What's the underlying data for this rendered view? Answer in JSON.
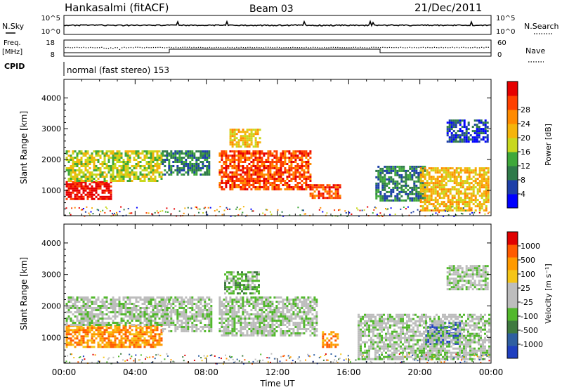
{
  "header": {
    "station": "Hankasalmi (fitACF)",
    "beam": "Beam 03",
    "date": "21/Dec/2011"
  },
  "noise": {
    "left_label": "N.Sky",
    "right_label": "N.Search",
    "ticks_left": [
      "10^5",
      "10^0"
    ],
    "ticks_right": [
      "10^5",
      "10^0"
    ]
  },
  "freq": {
    "label_line1": "Freq.",
    "label_line2": "[MHz]",
    "ticks_left": [
      "18",
      "8"
    ],
    "right_label": "Nave",
    "ticks_right": [
      "60",
      "0"
    ]
  },
  "cpid": {
    "label": "CPID",
    "value": "normal (fast stereo) 153"
  },
  "colors": {
    "power_scale": [
      "#0000ff",
      "#1d3fa8",
      "#2f7a4a",
      "#3fa83a",
      "#c8d81e",
      "#f5b40a",
      "#ff8a00",
      "#ff4000",
      "#e60000"
    ],
    "velocity_scale": [
      "#1f3fbf",
      "#2f5fa0",
      "#3f7a40",
      "#52b82c",
      "#bdbdbd",
      "#bdbdbd",
      "#f5c518",
      "#ff9a00",
      "#ff5a00",
      "#e00000"
    ]
  },
  "chart_data": [
    {
      "type": "heatmap",
      "panel": "power",
      "xlabel": "",
      "ylabel": "Slant Range [km]",
      "y_ticks": [
        "1000",
        "2000",
        "3000",
        "4000"
      ],
      "ylim": [
        180,
        4600
      ],
      "xlim": [
        0,
        24
      ],
      "colorbar": {
        "label": "Power [dB]",
        "ticks": [
          "4",
          "8",
          "12",
          "16",
          "20",
          "24",
          "28"
        ]
      },
      "echo_regions": [
        {
          "t0": 0.1,
          "t1": 2.6,
          "r0": 700,
          "r1": 1300,
          "level": 8
        },
        {
          "t0": 0.1,
          "t1": 5.5,
          "r0": 1300,
          "r1": 2300,
          "level": 4
        },
        {
          "t0": 5.5,
          "t1": 8.2,
          "r0": 1500,
          "r1": 2300,
          "level": 2
        },
        {
          "t0": 8.7,
          "t1": 13.9,
          "r0": 1050,
          "r1": 2300,
          "level": 7
        },
        {
          "t0": 13.8,
          "t1": 15.5,
          "r0": 750,
          "r1": 1200,
          "level": 7
        },
        {
          "t0": 9.3,
          "t1": 11.0,
          "r0": 2400,
          "r1": 3000,
          "level": 5
        },
        {
          "t0": 17.5,
          "t1": 20.3,
          "r0": 650,
          "r1": 1800,
          "level": 2
        },
        {
          "t0": 20.0,
          "t1": 23.9,
          "r0": 350,
          "r1": 1750,
          "level": 5
        },
        {
          "t0": 21.5,
          "t1": 23.8,
          "r0": 2550,
          "r1": 3300,
          "level": 1
        }
      ]
    },
    {
      "type": "heatmap",
      "panel": "velocity",
      "xlabel": "Time UT",
      "ylabel": "Slant Range [km]",
      "x_ticks": [
        "00:00",
        "04:00",
        "08:00",
        "12:00",
        "16:00",
        "20:00",
        "00:00"
      ],
      "y_ticks": [
        "1000",
        "2000",
        "3000",
        "4000"
      ],
      "ylim": [
        180,
        4600
      ],
      "xlim": [
        0,
        24
      ],
      "colorbar": {
        "label": "Velocity  [m s⁻¹]",
        "ticks": [
          "1000",
          "500",
          "100",
          "25",
          "-25",
          "-100",
          "-500",
          "-1000"
        ]
      },
      "echo_regions": [
        {
          "t0": 0.1,
          "t1": 5.5,
          "r0": 700,
          "r1": 1400,
          "level": 7
        },
        {
          "t0": 0.1,
          "t1": 6.0,
          "r0": 1400,
          "r1": 2300,
          "level": 4
        },
        {
          "t0": 5.5,
          "t1": 8.3,
          "r0": 1200,
          "r1": 2300,
          "level": 4
        },
        {
          "t0": 8.7,
          "t1": 14.2,
          "r0": 1050,
          "r1": 2300,
          "level": 4
        },
        {
          "t0": 14.5,
          "t1": 15.4,
          "r0": 700,
          "r1": 1200,
          "level": 7
        },
        {
          "t0": 9.0,
          "t1": 11.0,
          "r0": 2400,
          "r1": 3100,
          "level": 3
        },
        {
          "t0": 20.3,
          "t1": 22.3,
          "r0": 800,
          "r1": 1500,
          "level": 0
        },
        {
          "t0": 16.5,
          "t1": 23.9,
          "r0": 300,
          "r1": 1750,
          "level": 4
        },
        {
          "t0": 21.5,
          "t1": 23.8,
          "r0": 2550,
          "r1": 3300,
          "level": 4
        }
      ]
    }
  ]
}
